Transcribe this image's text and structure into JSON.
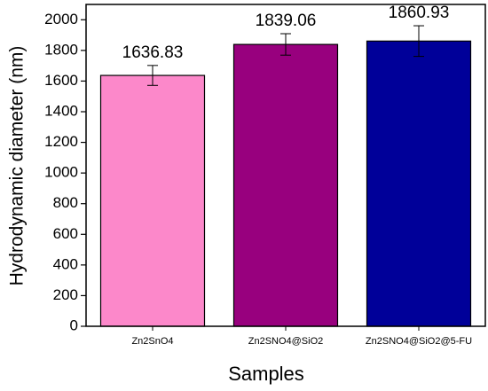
{
  "chart_data": {
    "type": "bar",
    "x_label": "Samples",
    "y_label": "Hydrodynamic diameter (nm)",
    "categories": [
      "Zn2SnO4",
      "Zn2SNO4@SiO2",
      "Zn2SNO4@SiO2@5-FU"
    ],
    "values": [
      1636.83,
      1839.06,
      1860.93
    ],
    "errors": [
      65,
      70,
      100
    ],
    "colors": [
      "#fc88ca",
      "#98007e",
      "#000099"
    ],
    "ylim": [
      0,
      2100
    ],
    "yticks": [
      0,
      200,
      400,
      600,
      800,
      1000,
      1200,
      1400,
      1600,
      1800,
      2000
    ]
  }
}
